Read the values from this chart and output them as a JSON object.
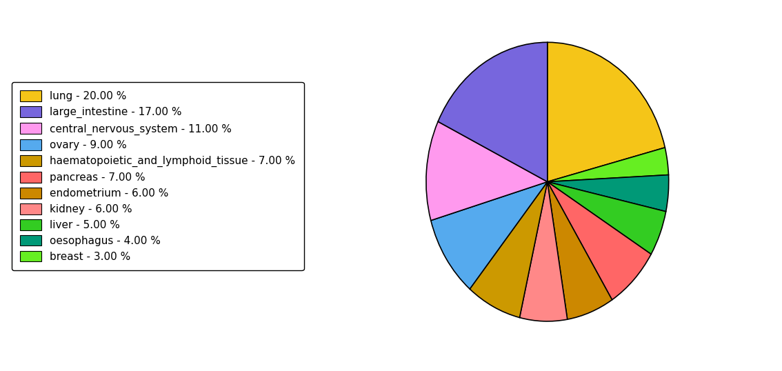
{
  "labels": [
    "lung",
    "breast",
    "oesophagus",
    "liver",
    "pancreas",
    "endometrium",
    "kidney",
    "haematopoietic_and_lymphoid_tissue",
    "ovary",
    "central_nervous_system",
    "large_intestine"
  ],
  "values": [
    20,
    3,
    4,
    5,
    7,
    6,
    6,
    7,
    9,
    11,
    17
  ],
  "colors": [
    "#F5C518",
    "#66EE22",
    "#009977",
    "#33CC22",
    "#FF6666",
    "#CC8800",
    "#FF8888",
    "#CC9900",
    "#55AAEE",
    "#FF99EE",
    "#7766DD"
  ],
  "legend_order_labels": [
    "lung",
    "large_intestine",
    "central_nervous_system",
    "ovary",
    "haematopoietic_and_lymphoid_tissue",
    "pancreas",
    "endometrium",
    "kidney",
    "liver",
    "oesophagus",
    "breast"
  ],
  "legend_order_colors": [
    "#F5C518",
    "#7766DD",
    "#FF99EE",
    "#55AAEE",
    "#CC9900",
    "#FF6666",
    "#CC8800",
    "#FF8888",
    "#33CC22",
    "#009977",
    "#66EE22"
  ],
  "legend_labels": [
    "lung - 20.00 %",
    "large_intestine - 17.00 %",
    "central_nervous_system - 11.00 %",
    "ovary - 9.00 %",
    "haematopoietic_and_lymphoid_tissue - 7.00 %",
    "pancreas - 7.00 %",
    "endometrium - 6.00 %",
    "kidney - 6.00 %",
    "liver - 5.00 %",
    "oesophagus - 4.00 %",
    "breast - 3.00 %"
  ],
  "startangle": 90,
  "figsize": [
    11.34,
    5.38
  ],
  "dpi": 100
}
